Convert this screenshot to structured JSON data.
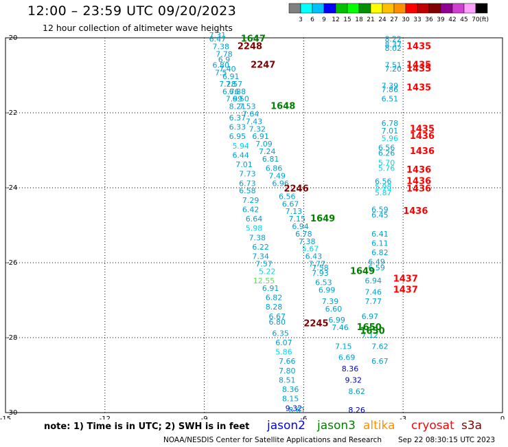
{
  "title": "12:00 – 23:59 UTC 09/20/2023",
  "subtitle": "12 hour collection of altimeter wave heights",
  "colorbar": {
    "unit": "(ft)",
    "colors": [
      "#808080",
      "#00ffff",
      "#00c0ff",
      "#0000ff",
      "#00c000",
      "#00ff00",
      "#009000",
      "#ffff00",
      "#ffc000",
      "#ff9000",
      "#ff0000",
      "#c00000",
      "#800000",
      "#900090",
      "#d040d0",
      "#ffa0ff",
      "#000000"
    ],
    "labels": [
      "3",
      "6",
      "9",
      "12",
      "15",
      "18",
      "21",
      "24",
      "27",
      "30",
      "33",
      "36",
      "39",
      "42",
      "45",
      "70"
    ]
  },
  "map": {
    "x_range": [
      -15,
      0
    ],
    "y_range": [
      -30,
      -20
    ],
    "x_ticks": [
      "-15",
      "-12",
      "-9",
      "-6",
      "-3",
      "0"
    ],
    "y_ticks": [
      "-20",
      "-22",
      "-24",
      "-26",
      "-28",
      "-30"
    ],
    "gridlines": "dotted",
    "track_labels": [
      {
        "text": "1647",
        "color": "#008000",
        "lon": -7.9,
        "lat": -20.1
      },
      {
        "text": "2248",
        "color": "#800000",
        "lon": -8.0,
        "lat": -20.3
      },
      {
        "text": "2247",
        "color": "#800000",
        "lon": -7.6,
        "lat": -20.8
      },
      {
        "text": "1648",
        "color": "#008000",
        "lon": -7.0,
        "lat": -21.9
      },
      {
        "text": "2246",
        "color": "#800000",
        "lon": -6.6,
        "lat": -24.1
      },
      {
        "text": "1649",
        "color": "#008000",
        "lon": -5.8,
        "lat": -24.9
      },
      {
        "text": "1649",
        "color": "#008000",
        "lon": -4.6,
        "lat": -26.3
      },
      {
        "text": "2245",
        "color": "#800000",
        "lon": -6.0,
        "lat": -27.7
      },
      {
        "text": "1650",
        "color": "#008000",
        "lon": -4.4,
        "lat": -27.8
      },
      {
        "text": "1650",
        "color": "#008000",
        "lon": -4.3,
        "lat": -27.9
      },
      {
        "text": "1435",
        "color": "#ff0000",
        "lon": -2.9,
        "lat": -20.3
      },
      {
        "text": "1435",
        "color": "#ff0000",
        "lon": -2.9,
        "lat": -20.8
      },
      {
        "text": "1435",
        "color": "#ff0000",
        "lon": -2.9,
        "lat": -20.9
      },
      {
        "text": "1435",
        "color": "#ff0000",
        "lon": -2.9,
        "lat": -21.4
      },
      {
        "text": "1435",
        "color": "#ff0000",
        "lon": -2.8,
        "lat": -22.5
      },
      {
        "text": "1436",
        "color": "#ff0000",
        "lon": -2.8,
        "lat": -22.7
      },
      {
        "text": "1436",
        "color": "#ff0000",
        "lon": -2.8,
        "lat": -23.1
      },
      {
        "text": "1436",
        "color": "#ff0000",
        "lon": -2.9,
        "lat": -23.6
      },
      {
        "text": "1436",
        "color": "#ff0000",
        "lon": -2.9,
        "lat": -23.9
      },
      {
        "text": "1436",
        "color": "#ff0000",
        "lon": -2.9,
        "lat": -24.1
      },
      {
        "text": "1436",
        "color": "#ff0000",
        "lon": -3.0,
        "lat": -24.7
      },
      {
        "text": "1437",
        "color": "#ff0000",
        "lon": -3.3,
        "lat": -26.5
      },
      {
        "text": "1437",
        "color": "#ff0000",
        "lon": -3.3,
        "lat": -26.8
      }
    ],
    "wave_values": [
      {
        "text": "7.31",
        "color": "#00a0d0",
        "lon": -8.6,
        "lat": -20.0
      },
      {
        "text": "6.47",
        "color": "#00a0d0",
        "lon": -8.6,
        "lat": -20.1
      },
      {
        "text": "7.38",
        "color": "#00a0d0",
        "lon": -8.5,
        "lat": -20.3
      },
      {
        "text": "7.78",
        "color": "#00a0d0",
        "lon": -8.4,
        "lat": -20.5
      },
      {
        "text": "6.9",
        "color": "#00a0d0",
        "lon": -8.4,
        "lat": -20.65
      },
      {
        "text": "6.80",
        "color": "#00a0d0",
        "lon": -8.5,
        "lat": -20.8
      },
      {
        "text": "7.40",
        "color": "#00a0d0",
        "lon": -8.3,
        "lat": -20.9
      },
      {
        "text": "7.5",
        "color": "#00a0d0",
        "lon": -8.5,
        "lat": -21.0
      },
      {
        "text": "6.91",
        "color": "#00a0d0",
        "lon": -8.2,
        "lat": -21.1
      },
      {
        "text": "7.28",
        "color": "#00a0d0",
        "lon": -8.3,
        "lat": -21.3
      },
      {
        "text": "7.57",
        "color": "#00a0d0",
        "lon": -8.1,
        "lat": -21.3
      },
      {
        "text": "6.76",
        "color": "#00a0d0",
        "lon": -8.2,
        "lat": -21.5
      },
      {
        "text": "6.88",
        "color": "#00a0d0",
        "lon": -8.0,
        "lat": -21.5
      },
      {
        "text": "7.99",
        "color": "#00a0d0",
        "lon": -8.1,
        "lat": -21.7
      },
      {
        "text": "6.50",
        "color": "#00a0d0",
        "lon": -7.9,
        "lat": -21.7
      },
      {
        "text": "8.21",
        "color": "#00a0d0",
        "lon": -8.0,
        "lat": -21.9
      },
      {
        "text": "7.53",
        "color": "#00a0d0",
        "lon": -7.7,
        "lat": -21.9
      },
      {
        "text": "7.64",
        "color": "#00a0d0",
        "lon": -7.6,
        "lat": -22.1
      },
      {
        "text": "6.37",
        "color": "#00a0d0",
        "lon": -8.0,
        "lat": -22.2
      },
      {
        "text": "7.43",
        "color": "#00a0d0",
        "lon": -7.5,
        "lat": -22.3
      },
      {
        "text": "6.33",
        "color": "#00a0d0",
        "lon": -8.0,
        "lat": -22.45
      },
      {
        "text": "7.32",
        "color": "#00a0d0",
        "lon": -7.4,
        "lat": -22.5
      },
      {
        "text": "6.95",
        "color": "#00a0d0",
        "lon": -8.0,
        "lat": -22.7
      },
      {
        "text": "6.91",
        "color": "#00a0d0",
        "lon": -7.3,
        "lat": -22.7
      },
      {
        "text": "5.94",
        "color": "#00d8e8",
        "lon": -7.9,
        "lat": -22.95
      },
      {
        "text": "7.09",
        "color": "#00a0d0",
        "lon": -7.2,
        "lat": -22.9
      },
      {
        "text": "6.44",
        "color": "#00a0d0",
        "lon": -7.9,
        "lat": -23.2
      },
      {
        "text": "7.24",
        "color": "#00a0d0",
        "lon": -7.1,
        "lat": -23.1
      },
      {
        "text": "6.81",
        "color": "#00a0d0",
        "lon": -7.0,
        "lat": -23.3
      },
      {
        "text": "7.01",
        "color": "#00a0d0",
        "lon": -7.8,
        "lat": -23.45
      },
      {
        "text": "6.86",
        "color": "#00a0d0",
        "lon": -6.9,
        "lat": -23.55
      },
      {
        "text": "7.73",
        "color": "#00a0d0",
        "lon": -7.7,
        "lat": -23.7
      },
      {
        "text": "7.49",
        "color": "#00a0d0",
        "lon": -6.8,
        "lat": -23.75
      },
      {
        "text": "6.73",
        "color": "#00a0d0",
        "lon": -7.7,
        "lat": -23.95
      },
      {
        "text": "6.96",
        "color": "#00a0d0",
        "lon": -6.7,
        "lat": -23.95
      },
      {
        "text": "6.58",
        "color": "#00a0d0",
        "lon": -7.7,
        "lat": -24.15
      },
      {
        "text": "6.56",
        "color": "#00a0d0",
        "lon": -6.5,
        "lat": -24.3
      },
      {
        "text": "7.29",
        "color": "#00a0d0",
        "lon": -7.6,
        "lat": -24.4
      },
      {
        "text": "6.67",
        "color": "#00a0d0",
        "lon": -6.4,
        "lat": -24.5
      },
      {
        "text": "6.42",
        "color": "#00a0d0",
        "lon": -7.6,
        "lat": -24.65
      },
      {
        "text": "7.13",
        "color": "#00a0d0",
        "lon": -6.3,
        "lat": -24.7
      },
      {
        "text": "6.64",
        "color": "#00a0d0",
        "lon": -7.5,
        "lat": -24.9
      },
      {
        "text": "7.15",
        "color": "#00a0d0",
        "lon": -6.2,
        "lat": -24.9
      },
      {
        "text": "6.94",
        "color": "#00a0d0",
        "lon": -6.1,
        "lat": -25.1
      },
      {
        "text": "5.98",
        "color": "#00d8e8",
        "lon": -7.5,
        "lat": -25.15
      },
      {
        "text": "6.78",
        "color": "#00a0d0",
        "lon": -6.0,
        "lat": -25.3
      },
      {
        "text": "7.38",
        "color": "#00a0d0",
        "lon": -7.4,
        "lat": -25.4
      },
      {
        "text": "7.38",
        "color": "#00a0d0",
        "lon": -5.9,
        "lat": -25.5
      },
      {
        "text": "5.67",
        "color": "#00d8e8",
        "lon": -5.8,
        "lat": -25.7
      },
      {
        "text": "6.22",
        "color": "#00a0d0",
        "lon": -7.3,
        "lat": -25.65
      },
      {
        "text": "6.43",
        "color": "#00a0d0",
        "lon": -5.7,
        "lat": -25.9
      },
      {
        "text": "7.34",
        "color": "#00a0d0",
        "lon": -7.3,
        "lat": -25.9
      },
      {
        "text": "7.77",
        "color": "#00a0d0",
        "lon": -5.6,
        "lat": -26.1
      },
      {
        "text": "7.57",
        "color": "#00a0d0",
        "lon": -7.2,
        "lat": -26.1
      },
      {
        "text": "7.58",
        "color": "#00a0d0",
        "lon": -5.5,
        "lat": -26.2
      },
      {
        "text": "5.22",
        "color": "#00d8e8",
        "lon": -7.1,
        "lat": -26.3
      },
      {
        "text": "7.93",
        "color": "#00a0d0",
        "lon": -5.5,
        "lat": -26.35
      },
      {
        "text": "12.55",
        "color": "#60e060",
        "lon": -7.2,
        "lat": -26.55
      },
      {
        "text": "6.91",
        "color": "#00a0d0",
        "lon": -7.0,
        "lat": -26.75
      },
      {
        "text": "6.82",
        "color": "#00a0d0",
        "lon": -6.9,
        "lat": -27.0
      },
      {
        "text": "8.28",
        "color": "#00a0d0",
        "lon": -6.9,
        "lat": -27.25
      },
      {
        "text": "6.67",
        "color": "#00a0d0",
        "lon": -6.8,
        "lat": -27.5
      },
      {
        "text": "6.80",
        "color": "#00a0d0",
        "lon": -6.8,
        "lat": -27.65
      },
      {
        "text": "6.35",
        "color": "#00a0d0",
        "lon": -6.7,
        "lat": -27.95
      },
      {
        "text": "6.07",
        "color": "#00a0d0",
        "lon": -6.6,
        "lat": -28.2
      },
      {
        "text": "5.86",
        "color": "#00d8e8",
        "lon": -6.6,
        "lat": -28.45
      },
      {
        "text": "7.66",
        "color": "#00a0d0",
        "lon": -6.5,
        "lat": -28.7
      },
      {
        "text": "7.80",
        "color": "#00a0d0",
        "lon": -6.5,
        "lat": -28.95
      },
      {
        "text": "8.51",
        "color": "#00a0d0",
        "lon": -6.5,
        "lat": -29.2
      },
      {
        "text": "8.36",
        "color": "#00a0d0",
        "lon": -6.4,
        "lat": -29.45
      },
      {
        "text": "8.15",
        "color": "#00a0d0",
        "lon": -6.4,
        "lat": -29.7
      },
      {
        "text": "9.32",
        "color": "#0000c0",
        "lon": -6.3,
        "lat": -29.95
      },
      {
        "text": "8.61",
        "color": "#00a0d0",
        "lon": -6.2,
        "lat": -30.0
      },
      {
        "text": "6.53",
        "color": "#00a0d0",
        "lon": -5.4,
        "lat": -26.6
      },
      {
        "text": "6.99",
        "color": "#00a0d0",
        "lon": -5.3,
        "lat": -26.8
      },
      {
        "text": "7.39",
        "color": "#00a0d0",
        "lon": -5.2,
        "lat": -27.1
      },
      {
        "text": "6.60",
        "color": "#00a0d0",
        "lon": -5.1,
        "lat": -27.3
      },
      {
        "text": "6.99",
        "color": "#00a0d0",
        "lon": -5.0,
        "lat": -27.6
      },
      {
        "text": "7.46",
        "color": "#00a0d0",
        "lon": -4.9,
        "lat": -27.8
      },
      {
        "text": "7.15",
        "color": "#00a0d0",
        "lon": -4.8,
        "lat": -28.3
      },
      {
        "text": "6.69",
        "color": "#00a0d0",
        "lon": -4.7,
        "lat": -28.6
      },
      {
        "text": "8.36",
        "color": "#0000c0",
        "lon": -4.6,
        "lat": -28.9
      },
      {
        "text": "9.32",
        "color": "#0000c0",
        "lon": -4.5,
        "lat": -29.2
      },
      {
        "text": "8.62",
        "color": "#00a0d0",
        "lon": -4.4,
        "lat": -29.5
      },
      {
        "text": "8.26",
        "color": "#0000c0",
        "lon": -4.4,
        "lat": -30.0
      },
      {
        "text": "6.97",
        "color": "#00a0d0",
        "lon": -4.0,
        "lat": -27.5
      },
      {
        "text": "7.12",
        "color": "#00a0d0",
        "lon": -4.0,
        "lat": -28.0
      },
      {
        "text": "7.62",
        "color": "#00a0d0",
        "lon": -3.7,
        "lat": -28.3
      },
      {
        "text": "6.67",
        "color": "#00a0d0",
        "lon": -3.7,
        "lat": -28.7
      },
      {
        "text": "8.22",
        "color": "#00a0d0",
        "lon": -3.3,
        "lat": -20.1
      },
      {
        "text": "8.37",
        "color": "#00a0d0",
        "lon": -3.3,
        "lat": -20.25
      },
      {
        "text": "8.02",
        "color": "#00a0d0",
        "lon": -3.3,
        "lat": -20.35
      },
      {
        "text": "7.51",
        "color": "#00a0d0",
        "lon": -3.3,
        "lat": -20.8
      },
      {
        "text": "7.20",
        "color": "#00a0d0",
        "lon": -3.3,
        "lat": -20.9
      },
      {
        "text": "7.39",
        "color": "#00a0d0",
        "lon": -3.4,
        "lat": -21.35
      },
      {
        "text": "7.86",
        "color": "#00a0d0",
        "lon": -3.4,
        "lat": -21.45
      },
      {
        "text": "6.51",
        "color": "#00a0d0",
        "lon": -3.4,
        "lat": -21.7
      },
      {
        "text": "6.78",
        "color": "#00a0d0",
        "lon": -3.4,
        "lat": -22.35
      },
      {
        "text": "7.01",
        "color": "#00a0d0",
        "lon": -3.4,
        "lat": -22.55
      },
      {
        "text": "5.96",
        "color": "#00d8e8",
        "lon": -3.4,
        "lat": -22.75
      },
      {
        "text": "6.56",
        "color": "#00a0d0",
        "lon": -3.5,
        "lat": -23.0
      },
      {
        "text": "6.26",
        "color": "#00a0d0",
        "lon": -3.5,
        "lat": -23.15
      },
      {
        "text": "5.70",
        "color": "#00d8e8",
        "lon": -3.5,
        "lat": -23.4
      },
      {
        "text": "5.76",
        "color": "#00d8e8",
        "lon": -3.5,
        "lat": -23.55
      },
      {
        "text": "6.56",
        "color": "#00a0d0",
        "lon": -3.6,
        "lat": -23.9
      },
      {
        "text": "5.98",
        "color": "#00d8e8",
        "lon": -3.6,
        "lat": -24.05
      },
      {
        "text": "5.87",
        "color": "#00d8e8",
        "lon": -3.6,
        "lat": -24.2
      },
      {
        "text": "6.59",
        "color": "#00a0d0",
        "lon": -3.7,
        "lat": -24.65
      },
      {
        "text": "6.45",
        "color": "#00a0d0",
        "lon": -3.7,
        "lat": -24.8
      },
      {
        "text": "6.41",
        "color": "#00a0d0",
        "lon": -3.7,
        "lat": -25.3
      },
      {
        "text": "6.11",
        "color": "#00a0d0",
        "lon": -3.7,
        "lat": -25.55
      },
      {
        "text": "6.82",
        "color": "#00a0d0",
        "lon": -3.7,
        "lat": -25.8
      },
      {
        "text": "6.49",
        "color": "#00a0d0",
        "lon": -3.8,
        "lat": -26.05
      },
      {
        "text": "6.59",
        "color": "#00a0d0",
        "lon": -3.8,
        "lat": -26.2
      },
      {
        "text": "6.94",
        "color": "#00a0d0",
        "lon": -3.9,
        "lat": -26.55
      },
      {
        "text": "7.46",
        "color": "#00a0d0",
        "lon": -3.9,
        "lat": -26.85
      },
      {
        "text": "7.77",
        "color": "#00a0d0",
        "lon": -3.9,
        "lat": -27.1
      }
    ]
  },
  "note": "note:  1) Time is in UTC; 2) SWH is in feet",
  "satellites": [
    {
      "name": "jason2",
      "color": "#0000ff"
    },
    {
      "name": "jason3",
      "color": "#008000"
    },
    {
      "name": "altika",
      "color": "#ff9000"
    },
    {
      "name": "cryosat",
      "color": "#ff0000"
    },
    {
      "name": "s3a",
      "color": "#800000"
    }
  ],
  "credit": "NOAA/NESDIS Center for Satellite Applications and Research",
  "timestamp": "Sep 22 08:30:15 UTC 2023"
}
